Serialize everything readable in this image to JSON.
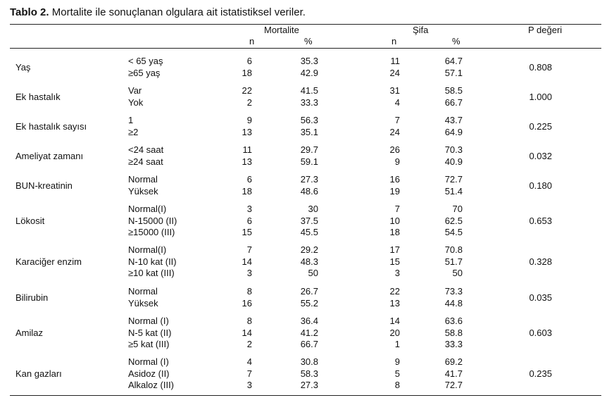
{
  "caption": {
    "label": "Tablo 2.",
    "text": " Mortalite ile sonuçlanan olgulara ait istatistiksel veriler."
  },
  "headers": {
    "mortality": "Mortalite",
    "cure": "Şifa",
    "pvalue": "P değeri",
    "n": "n",
    "percent": "%"
  },
  "rows": [
    {
      "label": "Yaş",
      "p": "0.808",
      "subs": [
        {
          "label": "< 65 yaş",
          "mn": "6",
          "mp": "35.3",
          "sn": "11",
          "sp": "64.7"
        },
        {
          "label": "≥65 yaş",
          "mn": "18",
          "mp": "42.9",
          "sn": "24",
          "sp": "57.1"
        }
      ]
    },
    {
      "label": "Ek hastalık",
      "p": "1.000",
      "subs": [
        {
          "label": "Var",
          "mn": "22",
          "mp": "41.5",
          "sn": "31",
          "sp": "58.5"
        },
        {
          "label": "Yok",
          "mn": "2",
          "mp": "33.3",
          "sn": "4",
          "sp": "66.7"
        }
      ]
    },
    {
      "label": "Ek hastalık sayısı",
      "p": "0.225",
      "subs": [
        {
          "label": " 1",
          "mn": "9",
          "mp": "56.3",
          "sn": "7",
          "sp": "43.7"
        },
        {
          "label": "≥2",
          "mn": "13",
          "mp": "35.1",
          "sn": "24",
          "sp": "64.9"
        }
      ]
    },
    {
      "label": "Ameliyat zamanı",
      "p": "0.032",
      "subs": [
        {
          "label": "<24 saat",
          "mn": "11",
          "mp": "29.7",
          "sn": "26",
          "sp": "70.3"
        },
        {
          "label": "≥24 saat",
          "mn": "13",
          "mp": "59.1",
          "sn": "9",
          "sp": "40.9"
        }
      ]
    },
    {
      "label": "BUN-kreatinin",
      "p": "0.180",
      "subs": [
        {
          "label": "Normal",
          "mn": "6",
          "mp": "27.3",
          "sn": "16",
          "sp": "72.7"
        },
        {
          "label": "Yüksek",
          "mn": "18",
          "mp": "48.6",
          "sn": "19",
          "sp": "51.4"
        }
      ]
    },
    {
      "label": "Lökosit",
      "p": "0.653",
      "subs": [
        {
          "label": "Normal(I)",
          "mn": "3",
          "mp": "30",
          "sn": "7",
          "sp": "70"
        },
        {
          "label": "N-15000 (II)",
          "mn": "6",
          "mp": "37.5",
          "sn": "10",
          "sp": "62.5"
        },
        {
          "label": "≥15000 (III)",
          "mn": "15",
          "mp": "45.5",
          "sn": "18",
          "sp": "54.5"
        }
      ]
    },
    {
      "label": "Karaciğer enzim",
      "p": "0.328",
      "subs": [
        {
          "label": "Normal(I)",
          "mn": "7",
          "mp": "29.2",
          "sn": "17",
          "sp": "70.8"
        },
        {
          "label": "N-10 kat (II)",
          "mn": "14",
          "mp": "48.3",
          "sn": "15",
          "sp": "51.7"
        },
        {
          "label": "≥10 kat (III)",
          "mn": "3",
          "mp": "50",
          "sn": "3",
          "sp": "50"
        }
      ]
    },
    {
      "label": "Bilirubin",
      "p": "0.035",
      "subs": [
        {
          "label": "Normal",
          "mn": "8",
          "mp": "26.7",
          "sn": "22",
          "sp": "73.3"
        },
        {
          "label": "Yüksek",
          "mn": "16",
          "mp": "55.2",
          "sn": "13",
          "sp": "44.8"
        }
      ]
    },
    {
      "label": "Amilaz",
      "p": "0.603",
      "subs": [
        {
          "label": "Normal (I)",
          "mn": "8",
          "mp": "36.4",
          "sn": "14",
          "sp": "63.6"
        },
        {
          "label": "N-5 kat (II)",
          "mn": "14",
          "mp": "41.2",
          "sn": "20",
          "sp": "58.8"
        },
        {
          "label": "≥5 kat (III)",
          "mn": "2",
          "mp": "66.7",
          "sn": "1",
          "sp": "33.3"
        }
      ]
    },
    {
      "label": "Kan gazları",
      "p": "0.235",
      "subs": [
        {
          "label": "Normal (I)",
          "mn": "4",
          "mp": "30.8",
          "sn": "9",
          "sp": "69.2"
        },
        {
          "label": "Asidoz (II)",
          "mn": "7",
          "mp": "58.3",
          "sn": "5",
          "sp": "41.7"
        },
        {
          "label": "Alkaloz (III)",
          "mn": "3",
          "mp": "27.3",
          "sn": "8",
          "sp": "72.7"
        }
      ]
    }
  ]
}
